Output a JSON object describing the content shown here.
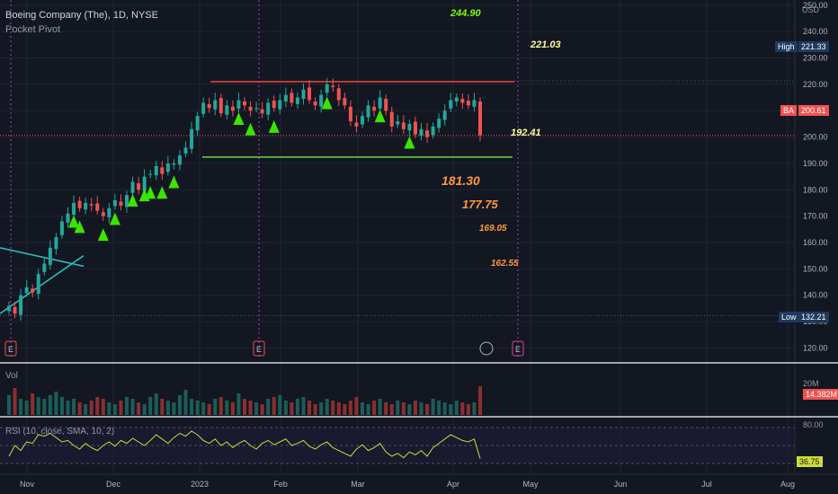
{
  "header": {
    "title": "Boeing Company (The), 1D, NYSE",
    "indicator": "Pocket Pivot",
    "currency": "USD"
  },
  "colors": {
    "background": "#131722",
    "up": "#26a69a",
    "down": "#ef5350",
    "pivot": "#39e600",
    "resistance": "#f44336",
    "support": "#6bd83a",
    "triangle": "#2ec4c4",
    "rsi": "#cddc39",
    "earnings": "#ef5350"
  },
  "annotations": {
    "target_top": "244.90",
    "resistance": "221.03",
    "support": "192.41",
    "t1": "181.30",
    "t2": "177.75",
    "t3": "169.05",
    "t4": "162.55"
  },
  "price_tags": {
    "high_label": "High",
    "high_value": "221.33",
    "last_label": "BA",
    "last_value": "200.61",
    "low_label": "Low",
    "low_value": "132.21"
  },
  "volume": {
    "label": "Vol",
    "scale": "20M",
    "value": "14.382M"
  },
  "rsi": {
    "label": "RSI (10, close, SMA, 10, 2)",
    "upper": "80.00",
    "value": "36.75"
  },
  "chart_data": {
    "type": "candlestick",
    "symbol": "BA",
    "ylim": [
      115,
      252
    ],
    "y_ticks": [
      120,
      130,
      140,
      150,
      160,
      170,
      180,
      190,
      200,
      210,
      220,
      230,
      240,
      250
    ],
    "x_labels": [
      "Nov",
      "Dec",
      "2023",
      "Feb",
      "Mar",
      "Apr",
      "May",
      "Jun",
      "Jul",
      "Aug"
    ],
    "resistance_level": 221.03,
    "support_level": 192.41,
    "high": 221.33,
    "low": 132.21,
    "last": 200.61,
    "closes": [
      136,
      133,
      140,
      143,
      141,
      148,
      152,
      158,
      162,
      168,
      171,
      175,
      173,
      175,
      174,
      172,
      170,
      173,
      176,
      174,
      178,
      183,
      180,
      185,
      186,
      189,
      186,
      190,
      190,
      193,
      196,
      203,
      208,
      213,
      211,
      214,
      209,
      212,
      210,
      214,
      212,
      210,
      211,
      209,
      213,
      211,
      214,
      216,
      213,
      215,
      218,
      214,
      212,
      216,
      220,
      219,
      214,
      212,
      206,
      204,
      208,
      212,
      210,
      215,
      210,
      204,
      206,
      203,
      205,
      201,
      203,
      200,
      204,
      207,
      210,
      214,
      215,
      213,
      212,
      214,
      200.61
    ],
    "pivot_days": [
      34,
      36,
      48,
      55,
      62,
      68,
      72,
      78,
      83,
      118,
      124,
      135,
      161,
      190,
      205
    ],
    "volume_pct": [
      0.55,
      0.75,
      0.45,
      0.4,
      0.6,
      0.5,
      0.45,
      0.55,
      0.65,
      0.5,
      0.4,
      0.45,
      0.35,
      0.3,
      0.4,
      0.5,
      0.45,
      0.35,
      0.3,
      0.4,
      0.5,
      0.45,
      0.35,
      0.3,
      0.5,
      0.6,
      0.45,
      0.4,
      0.35,
      0.55,
      0.7,
      0.45,
      0.4,
      0.35,
      0.3,
      0.45,
      0.5,
      0.4,
      0.35,
      0.6,
      0.45,
      0.4,
      0.35,
      0.3,
      0.45,
      0.5,
      0.55,
      0.4,
      0.35,
      0.45,
      0.5,
      0.4,
      0.3,
      0.35,
      0.45,
      0.4,
      0.35,
      0.3,
      0.4,
      0.5,
      0.35,
      0.3,
      0.4,
      0.45,
      0.35,
      0.3,
      0.4,
      0.35,
      0.3,
      0.4,
      0.35,
      0.3,
      0.45,
      0.4,
      0.35,
      0.3,
      0.4,
      0.35,
      0.3,
      0.35,
      0.8
    ],
    "rsi_values": [
      40,
      55,
      48,
      60,
      58,
      70,
      68,
      72,
      66,
      60,
      62,
      55,
      50,
      58,
      52,
      48,
      55,
      60,
      54,
      62,
      58,
      65,
      60,
      55,
      62,
      70,
      64,
      58,
      66,
      72,
      68,
      75,
      70,
      62,
      58,
      64,
      55,
      60,
      52,
      58,
      62,
      55,
      50,
      58,
      62,
      56,
      60,
      64,
      55,
      58,
      62,
      54,
      50,
      56,
      60,
      52,
      48,
      44,
      40,
      50,
      56,
      48,
      52,
      58,
      46,
      40,
      44,
      38,
      46,
      42,
      48,
      40,
      52,
      58,
      64,
      70,
      66,
      62,
      60,
      64,
      36.75
    ]
  }
}
